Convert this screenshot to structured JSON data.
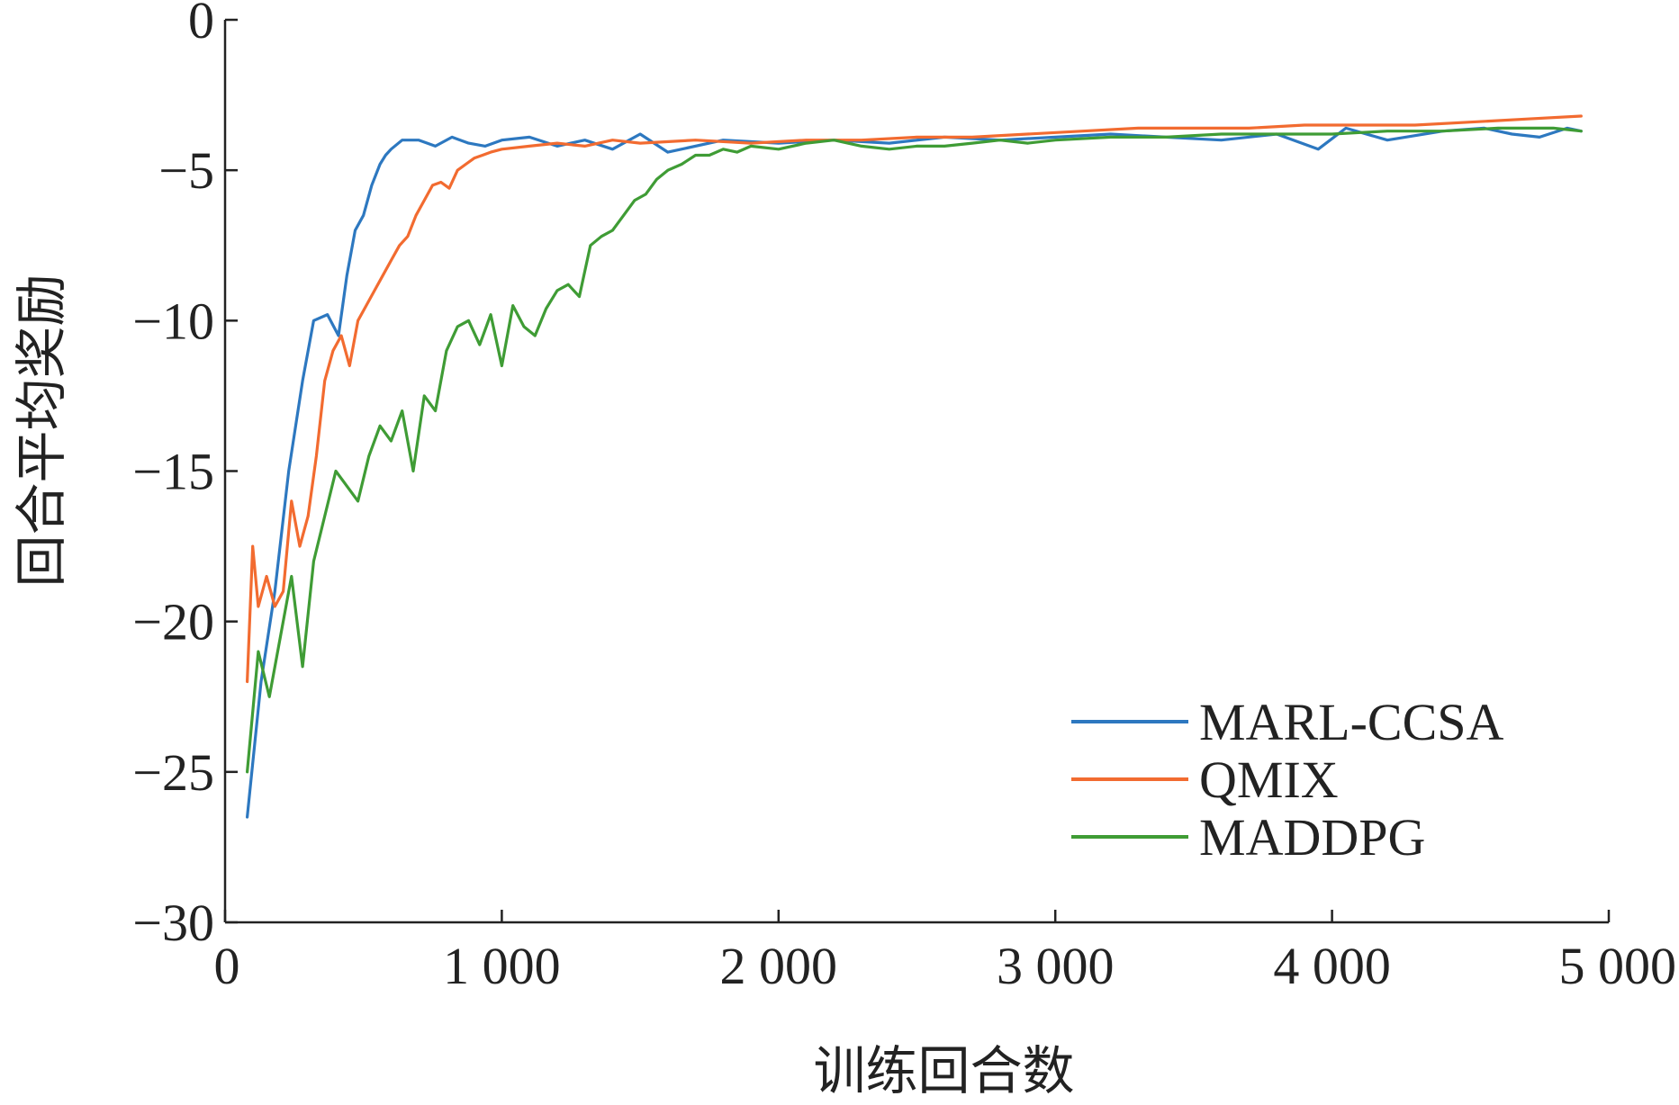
{
  "chart_data": {
    "type": "line",
    "xlabel": "训练回合数",
    "ylabel": "回合平均奖励",
    "xlim": [
      0,
      5000
    ],
    "ylim": [
      -30,
      0
    ],
    "xticks": [
      0,
      1000,
      2000,
      3000,
      4000,
      5000
    ],
    "xtick_labels": [
      "0",
      "1 000",
      "2 000",
      "3 000",
      "4 000",
      "5 000"
    ],
    "yticks": [
      -30,
      -25,
      -20,
      -15,
      -10,
      -5,
      0
    ],
    "ytick_labels": [
      "−30",
      "−25",
      "−20",
      "−15",
      "−10",
      "−5",
      "0"
    ],
    "legend_position": "bottom-right",
    "grid": false,
    "series": [
      {
        "name": "MARL-CCSA",
        "color": "#2d78c0",
        "x": [
          80,
          130,
          180,
          230,
          280,
          320,
          370,
          410,
          440,
          470,
          500,
          530,
          560,
          580,
          600,
          640,
          700,
          760,
          820,
          880,
          940,
          1000,
          1100,
          1200,
          1300,
          1400,
          1500,
          1600,
          1800,
          2000,
          2200,
          2400,
          2600,
          2800,
          3000,
          3200,
          3400,
          3600,
          3800,
          3950,
          4050,
          4200,
          4400,
          4550,
          4650,
          4750,
          4850,
          4900
        ],
        "y": [
          -26.5,
          -22.0,
          -19.0,
          -15.0,
          -12.0,
          -10.0,
          -9.8,
          -10.5,
          -8.5,
          -7.0,
          -6.5,
          -5.5,
          -4.8,
          -4.5,
          -4.3,
          -4.0,
          -4.0,
          -4.2,
          -3.9,
          -4.1,
          -4.2,
          -4.0,
          -3.9,
          -4.2,
          -4.0,
          -4.3,
          -3.8,
          -4.4,
          -4.0,
          -4.1,
          -4.0,
          -4.1,
          -3.9,
          -4.0,
          -3.9,
          -3.8,
          -3.9,
          -4.0,
          -3.8,
          -4.3,
          -3.6,
          -4.0,
          -3.7,
          -3.6,
          -3.8,
          -3.9,
          -3.6,
          -3.7
        ]
      },
      {
        "name": "QMIX",
        "color": "#f26b30",
        "x": [
          80,
          100,
          120,
          150,
          180,
          210,
          240,
          270,
          300,
          330,
          360,
          390,
          420,
          450,
          480,
          510,
          540,
          570,
          600,
          630,
          660,
          690,
          720,
          750,
          780,
          810,
          840,
          870,
          900,
          930,
          960,
          1000,
          1100,
          1200,
          1300,
          1400,
          1500,
          1700,
          1900,
          2100,
          2300,
          2500,
          2700,
          2900,
          3100,
          3300,
          3500,
          3700,
          3900,
          4100,
          4300,
          4500,
          4700,
          4900
        ],
        "y": [
          -22.0,
          -17.5,
          -19.5,
          -18.5,
          -19.5,
          -19.0,
          -16.0,
          -17.5,
          -16.5,
          -14.5,
          -12.0,
          -11.0,
          -10.5,
          -11.5,
          -10.0,
          -9.5,
          -9.0,
          -8.5,
          -8.0,
          -7.5,
          -7.2,
          -6.5,
          -6.0,
          -5.5,
          -5.4,
          -5.6,
          -5.0,
          -4.8,
          -4.6,
          -4.5,
          -4.4,
          -4.3,
          -4.2,
          -4.1,
          -4.2,
          -4.0,
          -4.1,
          -4.0,
          -4.1,
          -4.0,
          -4.0,
          -3.9,
          -3.9,
          -3.8,
          -3.7,
          -3.6,
          -3.6,
          -3.6,
          -3.5,
          -3.5,
          -3.5,
          -3.4,
          -3.3,
          -3.2
        ]
      },
      {
        "name": "MADDPG",
        "color": "#3f9c35",
        "x": [
          80,
          120,
          160,
          200,
          240,
          280,
          320,
          360,
          400,
          440,
          480,
          520,
          560,
          600,
          640,
          680,
          720,
          760,
          800,
          840,
          880,
          920,
          960,
          1000,
          1040,
          1080,
          1120,
          1160,
          1200,
          1240,
          1280,
          1320,
          1360,
          1400,
          1440,
          1480,
          1520,
          1560,
          1600,
          1650,
          1700,
          1750,
          1800,
          1850,
          1900,
          2000,
          2100,
          2200,
          2300,
          2400,
          2500,
          2600,
          2700,
          2800,
          2900,
          3000,
          3200,
          3400,
          3600,
          3800,
          4000,
          4200,
          4400,
          4600,
          4800,
          4900
        ],
        "y": [
          -25.0,
          -21.0,
          -22.5,
          -20.5,
          -18.5,
          -21.5,
          -18.0,
          -16.5,
          -15.0,
          -15.5,
          -16.0,
          -14.5,
          -13.5,
          -14.0,
          -13.0,
          -15.0,
          -12.5,
          -13.0,
          -11.0,
          -10.2,
          -10.0,
          -10.8,
          -9.8,
          -11.5,
          -9.5,
          -10.2,
          -10.5,
          -9.6,
          -9.0,
          -8.8,
          -9.2,
          -7.5,
          -7.2,
          -7.0,
          -6.5,
          -6.0,
          -5.8,
          -5.3,
          -5.0,
          -4.8,
          -4.5,
          -4.5,
          -4.3,
          -4.4,
          -4.2,
          -4.3,
          -4.1,
          -4.0,
          -4.2,
          -4.3,
          -4.2,
          -4.2,
          -4.1,
          -4.0,
          -4.1,
          -4.0,
          -3.9,
          -3.9,
          -3.8,
          -3.8,
          -3.8,
          -3.7,
          -3.7,
          -3.6,
          -3.6,
          -3.7
        ]
      }
    ]
  }
}
